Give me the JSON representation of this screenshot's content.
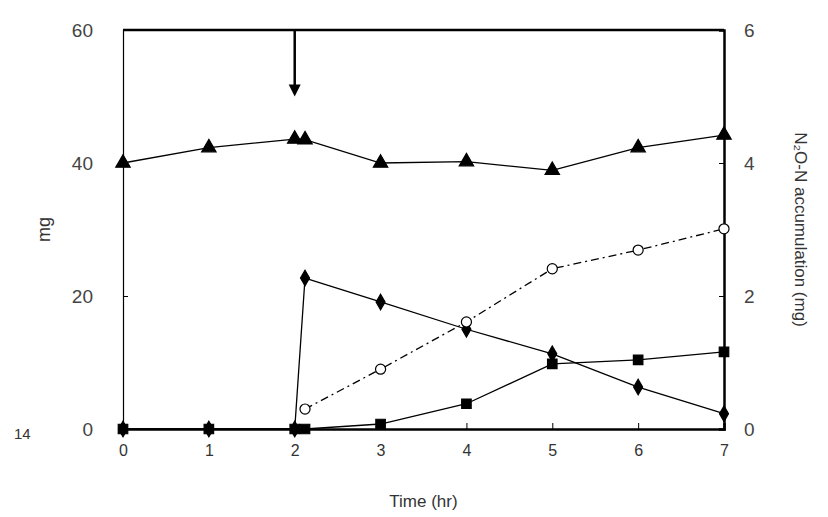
{
  "chart_data": {
    "type": "line",
    "x_label": "Time (hr)",
    "y_label": "mg",
    "y2_label": "N₂O-N accumulation (mg)",
    "xlim": [
      0,
      7
    ],
    "xticks": [
      0,
      1,
      2,
      3,
      4,
      5,
      6,
      7
    ],
    "ylim": [
      0,
      60
    ],
    "yticks": [
      0,
      20,
      40,
      60
    ],
    "y2lim": [
      0,
      6
    ],
    "y2ticks": [
      0,
      2,
      4,
      6
    ],
    "annotations": [
      {
        "text": "14"
      },
      {
        "type": "arrow",
        "x": 2,
        "y": [
          60,
          50
        ]
      }
    ],
    "series": [
      {
        "x": [
          0,
          1,
          2,
          2.12,
          3,
          4,
          5,
          6,
          7
        ],
        "values": [
          40.0,
          42.3,
          43.6,
          43.5,
          40.0,
          40.2,
          38.9,
          42.3,
          44.2
        ],
        "color": "#000000",
        "marker": "triangle",
        "line_style": "solid"
      },
      {
        "x": [
          0,
          1,
          2,
          2.12,
          3,
          4,
          5,
          6,
          7
        ],
        "values": [
          0,
          0,
          0,
          22.7,
          19.1,
          15.0,
          11.3,
          6.3,
          2.3
        ],
        "color": "#000000",
        "marker": "diamond",
        "line_style": "solid"
      },
      {
        "x": [
          0,
          1,
          2,
          2.12,
          3,
          4,
          5,
          6,
          7
        ],
        "values": [
          0,
          0,
          0,
          0,
          0.75,
          3.8,
          9.8,
          10.4,
          11.6
        ],
        "color": "#000000",
        "marker": "square",
        "line_style": "solid"
      },
      {
        "x": [
          2.12,
          3,
          4,
          5,
          6,
          7
        ],
        "values": [
          0.3,
          0.9,
          1.61,
          2.41,
          2.69,
          3.01
        ],
        "color": "#000000",
        "marker": "circle_open",
        "line_style": "dashdot",
        "axis": "y2"
      }
    ]
  }
}
